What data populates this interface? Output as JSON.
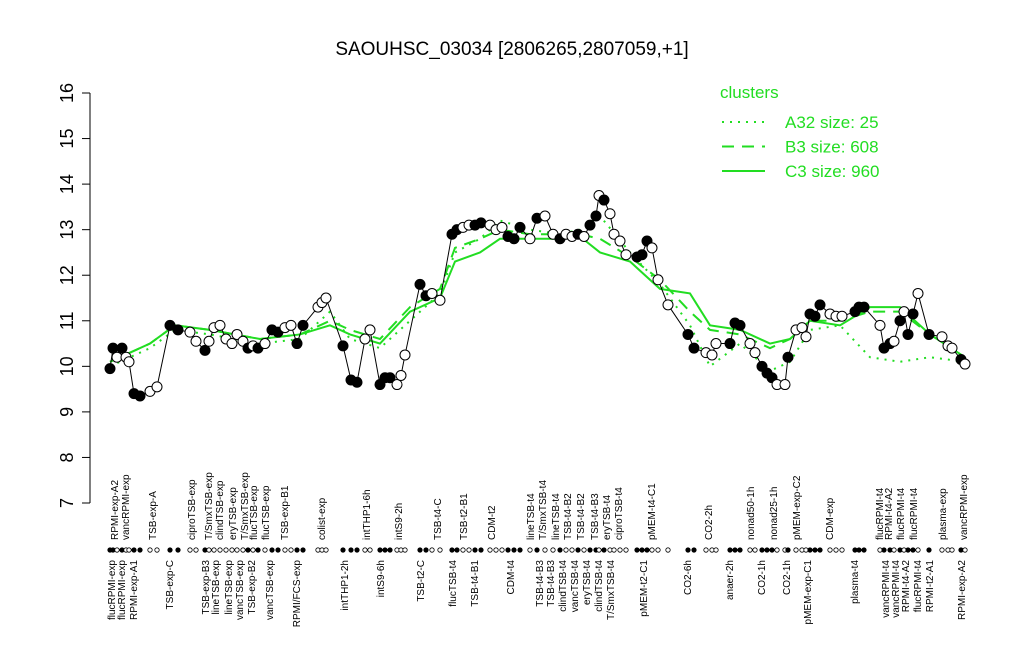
{
  "chart_data": {
    "type": "line",
    "title": "SAOUHSC_03034 [2806265,2807059,+1]",
    "ylim": [
      7,
      16
    ],
    "yticks": [
      7,
      8,
      9,
      10,
      11,
      12,
      13,
      14,
      15,
      16
    ],
    "xlim": [
      10.5,
      97
    ],
    "x": [
      11,
      11.3,
      11.7,
      12.2,
      12.6,
      12.9,
      13.4,
      14,
      15,
      15.7,
      17,
      17.8,
      19,
      19.6,
      20.5,
      20.9,
      21.4,
      22,
      22.6,
      23.2,
      23.7,
      24.3,
      24.8,
      25.3,
      25.8,
      26.5,
      27.2,
      27.8,
      28.5,
      29.1,
      29.7,
      30.3,
      31.8,
      32.2,
      32.6,
      34.3,
      35.1,
      35.7,
      36.5,
      37,
      38,
      38.5,
      39,
      39.7,
      40.1,
      40.5,
      42,
      42.6,
      43.2,
      44,
      45.2,
      45.7,
      46.3,
      46.9,
      47.5,
      48.1,
      49,
      49.6,
      50.2,
      50.8,
      51.4,
      52,
      53,
      53.7,
      54.5,
      55.3,
      56,
      56.6,
      57.2,
      57.8,
      58.4,
      59,
      59.6,
      59.9,
      60.4,
      61,
      61.4,
      62,
      62.6,
      63.7,
      64.2,
      64.7,
      65.2,
      65.8,
      66.8,
      68.8,
      69.4,
      70.6,
      71.2,
      71.6,
      73,
      73.5,
      74,
      75,
      75.5,
      76.2,
      76.7,
      77.2,
      77.7,
      78.5,
      78.8,
      79.6,
      80.2,
      80.6,
      81,
      81.5,
      82,
      83,
      83.6,
      84.2,
      85.5,
      85.9,
      86.4,
      88,
      88.4,
      89,
      89.4,
      90,
      90.4,
      90.8,
      91.3,
      91.8,
      92.9,
      94.2,
      94.8,
      95.2,
      96.1,
      96.5
    ],
    "values": [
      9.95,
      10.4,
      10.2,
      10.4,
      10.2,
      10.1,
      9.4,
      9.35,
      9.45,
      9.55,
      10.9,
      10.8,
      10.75,
      10.55,
      10.35,
      10.55,
      10.85,
      10.9,
      10.6,
      10.5,
      10.7,
      10.55,
      10.4,
      10.45,
      10.4,
      10.5,
      10.8,
      10.75,
      10.85,
      10.9,
      10.5,
      10.9,
      11.3,
      11.4,
      11.5,
      10.45,
      9.7,
      9.65,
      10.6,
      10.8,
      9.6,
      9.75,
      9.75,
      9.6,
      9.8,
      10.25,
      11.8,
      11.55,
      11.6,
      11.45,
      12.9,
      13,
      13.05,
      13.1,
      13.1,
      13.15,
      13.1,
      13,
      13.05,
      12.85,
      12.8,
      13.05,
      12.8,
      13.25,
      13.3,
      12.9,
      12.8,
      12.9,
      12.85,
      12.9,
      12.85,
      13.1,
      13.3,
      13.75,
      13.65,
      13.35,
      12.9,
      12.75,
      12.45,
      12.4,
      12.45,
      12.75,
      12.6,
      11.9,
      11.35,
      10.7,
      10.4,
      10.3,
      10.25,
      10.5,
      10.5,
      10.95,
      10.9,
      10.5,
      10.3,
      10,
      9.85,
      9.75,
      9.6,
      9.6,
      10.2,
      10.8,
      10.85,
      10.65,
      11.15,
      11.1,
      11.35,
      11.15,
      11.1,
      11.1,
      11.2,
      11.3,
      11.3,
      10.9,
      10.4,
      10.5,
      10.55,
      11,
      11.2,
      10.7,
      11.15,
      11.6,
      10.7,
      10.65,
      10.45,
      10.4,
      10.15,
      10.05
    ],
    "filled": [
      true,
      true,
      false,
      true,
      false,
      false,
      true,
      true,
      false,
      false,
      true,
      true,
      false,
      false,
      true,
      false,
      false,
      false,
      false,
      false,
      false,
      false,
      true,
      false,
      true,
      false,
      true,
      true,
      false,
      false,
      true,
      true,
      false,
      false,
      false,
      true,
      true,
      true,
      false,
      false,
      true,
      true,
      true,
      false,
      false,
      false,
      true,
      true,
      false,
      false,
      true,
      true,
      false,
      false,
      true,
      true,
      false,
      false,
      false,
      true,
      true,
      true,
      false,
      true,
      false,
      false,
      true,
      false,
      false,
      true,
      false,
      true,
      true,
      false,
      true,
      false,
      false,
      false,
      false,
      true,
      true,
      true,
      false,
      false,
      false,
      true,
      true,
      false,
      false,
      false,
      true,
      true,
      true,
      false,
      false,
      true,
      true,
      true,
      false,
      false,
      true,
      false,
      false,
      false,
      true,
      true,
      true,
      false,
      false,
      false,
      true,
      true,
      true,
      false,
      true,
      true,
      false,
      true,
      false,
      true,
      true,
      false,
      true,
      false,
      false,
      false,
      true,
      false
    ],
    "top_labels": [
      {
        "x": 11.5,
        "label": "RPMI-exp-A2"
      },
      {
        "x": 12.6,
        "label": "vancRPMI-exp"
      },
      {
        "x": 15.3,
        "label": "TSB-exp-A"
      },
      {
        "x": 19.2,
        "label": "ciproTSB-exp"
      },
      {
        "x": 20.9,
        "label": "T/SmxTSB-exp"
      },
      {
        "x": 22,
        "label": "clindTSB-exp"
      },
      {
        "x": 23.3,
        "label": "eryTSB-exp"
      },
      {
        "x": 24.5,
        "label": "T/SmxTSB-exp"
      },
      {
        "x": 25.4,
        "label": "flucTSB-exp"
      },
      {
        "x": 26.6,
        "label": "flucTSB-exp"
      },
      {
        "x": 28.5,
        "label": "TSB-exp-B1"
      },
      {
        "x": 32.2,
        "label": "colist-exp"
      },
      {
        "x": 36.7,
        "label": "intTHP1-6h"
      },
      {
        "x": 39.9,
        "label": "intS9-2h"
      },
      {
        "x": 43.8,
        "label": "TSB-t4-C"
      },
      {
        "x": 46.4,
        "label": "TSB-t2-B1"
      },
      {
        "x": 49.2,
        "label": "CDM-t2"
      },
      {
        "x": 53.1,
        "label": "lineTSB-t4"
      },
      {
        "x": 54.3,
        "label": "T/SmxTSB-t4"
      },
      {
        "x": 55.6,
        "label": "lineTSB-t4"
      },
      {
        "x": 56.8,
        "label": "TSB-t4-B2"
      },
      {
        "x": 58.1,
        "label": "TSB-t4-B2"
      },
      {
        "x": 59.5,
        "label": "TSB-t4-B3"
      },
      {
        "x": 60.7,
        "label": "eryTSB-t4"
      },
      {
        "x": 61.9,
        "label": "ciproTSB-t4"
      },
      {
        "x": 65.2,
        "label": "pMEM-t4-C1"
      },
      {
        "x": 70.9,
        "label": "CO2-2h"
      },
      {
        "x": 75.1,
        "label": "nonad50-1h"
      },
      {
        "x": 77.4,
        "label": "nonad25-1h"
      },
      {
        "x": 79.7,
        "label": "pMEM-exp-C2"
      },
      {
        "x": 83,
        "label": "CDM-exp"
      },
      {
        "x": 88,
        "label": "flucRPMI-t4"
      },
      {
        "x": 88.9,
        "label": "RPMI-t4-A2"
      },
      {
        "x": 90.1,
        "label": "flucRPMI-t4"
      },
      {
        "x": 91.4,
        "label": "flucRPMI-t4"
      },
      {
        "x": 94.3,
        "label": "plasma-exp"
      },
      {
        "x": 96.4,
        "label": "vancRPMI-exp"
      }
    ],
    "bottom_labels": [
      {
        "x": 11.2,
        "label": "flucRPMI-exp"
      },
      {
        "x": 12.2,
        "label": "flucRPMI-exp"
      },
      {
        "x": 13.4,
        "label": "RPMI-exp-A1"
      },
      {
        "x": 17,
        "label": "TSB-exp-C"
      },
      {
        "x": 20.6,
        "label": "TSB-exp-B3"
      },
      {
        "x": 21.6,
        "label": "lineTSB-exp"
      },
      {
        "x": 22.9,
        "label": "lineTSB-exp"
      },
      {
        "x": 24,
        "label": "vancTSB-exp"
      },
      {
        "x": 25.2,
        "label": "TSB-exp-B2"
      },
      {
        "x": 27,
        "label": "vancTSB-exp"
      },
      {
        "x": 29.7,
        "label": "RPMI/FCS-exp"
      },
      {
        "x": 34.5,
        "label": "intTHP1-2h"
      },
      {
        "x": 38.1,
        "label": "intS9-6h"
      },
      {
        "x": 42.1,
        "label": "TSB-t2-C"
      },
      {
        "x": 45.3,
        "label": "flucTSB-t4"
      },
      {
        "x": 47.5,
        "label": "TSB-t4-B1"
      },
      {
        "x": 51.1,
        "label": "CDM-t4"
      },
      {
        "x": 54,
        "label": "TSB-t4-B3"
      },
      {
        "x": 55.1,
        "label": "TSB-t4-B3"
      },
      {
        "x": 56.3,
        "label": "clindTSB-t4"
      },
      {
        "x": 57.5,
        "label": "vancTSB-t4"
      },
      {
        "x": 58.7,
        "label": "eryTSB-t4"
      },
      {
        "x": 59.9,
        "label": "clindTSB-t4"
      },
      {
        "x": 61.1,
        "label": "T/SmxTSB-t4"
      },
      {
        "x": 64.4,
        "label": "pMEM-t2-C1"
      },
      {
        "x": 68.8,
        "label": "CO2-6h"
      },
      {
        "x": 73,
        "label": "anaer-2h"
      },
      {
        "x": 76.2,
        "label": "CO2-1h"
      },
      {
        "x": 78.7,
        "label": "CO2-1h"
      },
      {
        "x": 80.8,
        "label": "pMEM-exp-C1"
      },
      {
        "x": 85.5,
        "label": "plasma-t4"
      },
      {
        "x": 88.6,
        "label": "vancRPMI-t4"
      },
      {
        "x": 89.6,
        "label": "vancRPMI-t4"
      },
      {
        "x": 90.6,
        "label": "RPMI-t4-A2"
      },
      {
        "x": 91.8,
        "label": "flucRPMI-t4"
      },
      {
        "x": 93,
        "label": "RPMI-t2-A1"
      },
      {
        "x": 96.2,
        "label": "RPMI-exp-A2"
      }
    ],
    "legend_title": "clusters",
    "cluster_color": "#22dd22",
    "series": [
      {
        "name": "A32 size: 25",
        "dash": "dotted",
        "x": [
          11,
          15,
          17.5,
          21,
          26,
          30,
          33,
          35,
          38,
          41,
          44,
          45.5,
          48,
          50,
          53,
          56,
          58,
          60,
          63,
          66,
          69,
          71,
          74,
          77,
          79,
          81,
          84,
          87,
          90,
          93,
          96.5
        ],
        "values": [
          10.0,
          10.4,
          10.8,
          10.7,
          10.5,
          10.6,
          11.2,
          10.6,
          10.4,
          11.0,
          11.6,
          12.5,
          12.8,
          13.2,
          13.0,
          12.9,
          13.0,
          13.3,
          12.5,
          11.8,
          10.9,
          10.0,
          10.5,
          9.9,
          10.1,
          10.8,
          10.9,
          10.2,
          10.1,
          10.2,
          10.1
        ]
      },
      {
        "name": "B3 size: 608",
        "dash": "dashed",
        "x": [
          11,
          15,
          17.5,
          21,
          26,
          30,
          33,
          35,
          38,
          41,
          44,
          45.5,
          48,
          50,
          53,
          56,
          58,
          60,
          63,
          66,
          69,
          71,
          74,
          77,
          79,
          81,
          84,
          87,
          90,
          93,
          96.5
        ],
        "values": [
          10.1,
          10.5,
          10.9,
          10.8,
          10.6,
          10.7,
          11.0,
          10.8,
          10.6,
          11.3,
          11.7,
          12.6,
          12.8,
          13.0,
          12.9,
          12.9,
          12.9,
          12.8,
          12.4,
          11.9,
          11.2,
          10.8,
          10.7,
          10.4,
          10.6,
          11.0,
          11.0,
          11.2,
          11.2,
          10.7,
          10.2
        ]
      },
      {
        "name": "C3 size: 960",
        "dash": "solid",
        "x": [
          11,
          15,
          17.5,
          21,
          26,
          30,
          33,
          35,
          38,
          41,
          44,
          45.5,
          48,
          50,
          53,
          56,
          58,
          60,
          63,
          66,
          69,
          71,
          74,
          77,
          79,
          81,
          84,
          87,
          90,
          93,
          96.5
        ],
        "values": [
          10.1,
          10.5,
          10.9,
          10.8,
          10.6,
          10.7,
          10.9,
          10.7,
          10.5,
          11.2,
          11.5,
          12.3,
          12.5,
          12.8,
          12.8,
          12.8,
          12.85,
          12.5,
          12.3,
          11.7,
          11.6,
          10.9,
          10.8,
          10.5,
          10.6,
          11.0,
          10.9,
          11.3,
          11.3,
          10.7,
          10.2
        ]
      }
    ]
  }
}
